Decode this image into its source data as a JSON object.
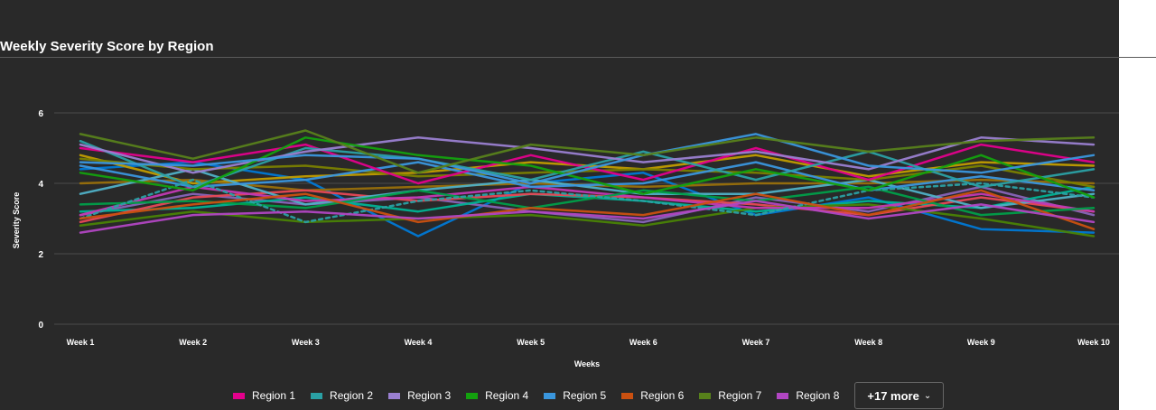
{
  "chart_data": {
    "type": "line",
    "title": "Weekly Severity Score by Region",
    "xlabel": "Weeks",
    "ylabel": "Severity Score",
    "ylim": [
      0,
      6
    ],
    "yticks": [
      0,
      2,
      4,
      6
    ],
    "categories": [
      "Week 1",
      "Week 2",
      "Week 3",
      "Week 4",
      "Week 5",
      "Week 6",
      "Week 7",
      "Week 8",
      "Week 9",
      "Week 10"
    ],
    "grid": true,
    "legend_position": "bottom",
    "series": [
      {
        "name": "Region 1",
        "color": "#e3008c",
        "values": [
          5.0,
          4.6,
          5.1,
          4.0,
          4.8,
          4.1,
          5.0,
          4.1,
          5.1,
          4.6
        ]
      },
      {
        "name": "Region 2",
        "color": "#2aa0a4",
        "values": [
          5.2,
          3.9,
          5.0,
          4.7,
          4.1,
          4.9,
          4.1,
          4.9,
          3.9,
          4.4
        ]
      },
      {
        "name": "Region 3",
        "color": "#9a7fd1",
        "values": [
          5.1,
          4.3,
          4.9,
          5.3,
          5.0,
          4.6,
          4.9,
          4.4,
          5.3,
          5.1
        ]
      },
      {
        "name": "Region 4",
        "color": "#13a10e",
        "values": [
          4.3,
          3.8,
          5.3,
          4.8,
          4.5,
          3.7,
          4.4,
          3.8,
          4.8,
          3.6
        ]
      },
      {
        "name": "Region 5",
        "color": "#3a96dd",
        "values": [
          4.6,
          4.5,
          4.8,
          4.7,
          4.0,
          4.8,
          5.4,
          4.5,
          4.3,
          4.8
        ]
      },
      {
        "name": "Region 6",
        "color": "#ca5010",
        "values": [
          3.0,
          3.4,
          3.7,
          2.9,
          3.3,
          3.1,
          3.7,
          3.1,
          3.8,
          2.7
        ]
      },
      {
        "name": "Region 7",
        "color": "#57811b",
        "values": [
          5.4,
          4.7,
          5.5,
          4.3,
          5.1,
          4.8,
          5.3,
          4.9,
          5.2,
          5.3
        ]
      },
      {
        "name": "Region 8",
        "color": "#b146c2",
        "values": [
          2.6,
          3.1,
          3.2,
          3.0,
          3.2,
          3.0,
          3.5,
          3.0,
          3.4,
          2.9
        ]
      }
    ],
    "hidden_series_count": 17
  },
  "extra_lines": [
    {
      "color": "#0078d4",
      "values": [
        4.4,
        4.6,
        4.1,
        2.5,
        4.0,
        4.3,
        3.1,
        3.6,
        2.7,
        2.6
      ]
    },
    {
      "color": "#8764b8",
      "values": [
        3.1,
        3.7,
        3.4,
        3.6,
        3.2,
        2.9,
        3.6,
        3.2,
        3.9,
        3.1
      ]
    },
    {
      "color": "#00b294",
      "values": [
        3.2,
        3.3,
        3.6,
        3.2,
        3.7,
        3.5,
        3.2,
        3.5,
        3.3,
        3.9
      ]
    },
    {
      "color": "#c19c00",
      "values": [
        4.8,
        4.0,
        4.2,
        4.3,
        4.6,
        4.4,
        4.8,
        4.2,
        4.6,
        4.5
      ]
    },
    {
      "color": "#986f0b",
      "values": [
        4.0,
        4.1,
        3.8,
        3.9,
        4.0,
        3.9,
        4.0,
        4.0,
        4.1,
        4.0
      ]
    },
    {
      "color": "#e74856",
      "values": [
        2.9,
        3.6,
        3.8,
        3.5,
        3.7,
        3.6,
        3.4,
        3.1,
        3.6,
        3.2
      ]
    },
    {
      "color": "#498205",
      "values": [
        2.8,
        3.2,
        2.9,
        3.0,
        3.1,
        2.8,
        3.3,
        3.4,
        3.0,
        2.5
      ]
    },
    {
      "color": "#4fb0c6",
      "values": [
        3.7,
        4.4,
        3.4,
        3.8,
        4.1,
        3.7,
        3.7,
        4.1,
        3.3,
        3.7
      ]
    },
    {
      "color": "#c239b3",
      "values": [
        3.1,
        3.9,
        3.5,
        3.6,
        3.9,
        3.6,
        3.3,
        3.3,
        3.7,
        3.2
      ]
    },
    {
      "color": "#7a7f00",
      "values": [
        4.7,
        4.4,
        4.5,
        4.2,
        4.3,
        4.4,
        4.3,
        4.1,
        4.5,
        3.9
      ]
    },
    {
      "color": "#3a96dd",
      "values": [
        4.5,
        3.9,
        4.1,
        4.6,
        3.9,
        4.0,
        4.6,
        3.8,
        4.2,
        3.8
      ]
    },
    {
      "color": "#009e49",
      "values": [
        3.4,
        3.5,
        3.3,
        3.8,
        3.3,
        3.8,
        3.5,
        3.9,
        3.1,
        3.3
      ]
    },
    {
      "color": "#2aa0a4",
      "dashed": true,
      "values": [
        3.0,
        4.1,
        2.9,
        3.5,
        3.8,
        3.5,
        3.1,
        3.8,
        4.0,
        3.6
      ]
    }
  ],
  "legend": {
    "items": [
      {
        "label": "Region 1",
        "color": "#e3008c"
      },
      {
        "label": "Region 2",
        "color": "#2aa0a4"
      },
      {
        "label": "Region 3",
        "color": "#9a7fd1"
      },
      {
        "label": "Region 4",
        "color": "#13a10e"
      },
      {
        "label": "Region 5",
        "color": "#3a96dd"
      },
      {
        "label": "Region 6",
        "color": "#ca5010"
      },
      {
        "label": "Region 7",
        "color": "#57811b"
      },
      {
        "label": "Region 8",
        "color": "#b146c2"
      }
    ],
    "more_label": "+17 more",
    "more_icon": "chevron-down-icon"
  },
  "colors": {
    "background": "#292929",
    "grid": "#4a4a4a",
    "text": "#ffffff"
  }
}
